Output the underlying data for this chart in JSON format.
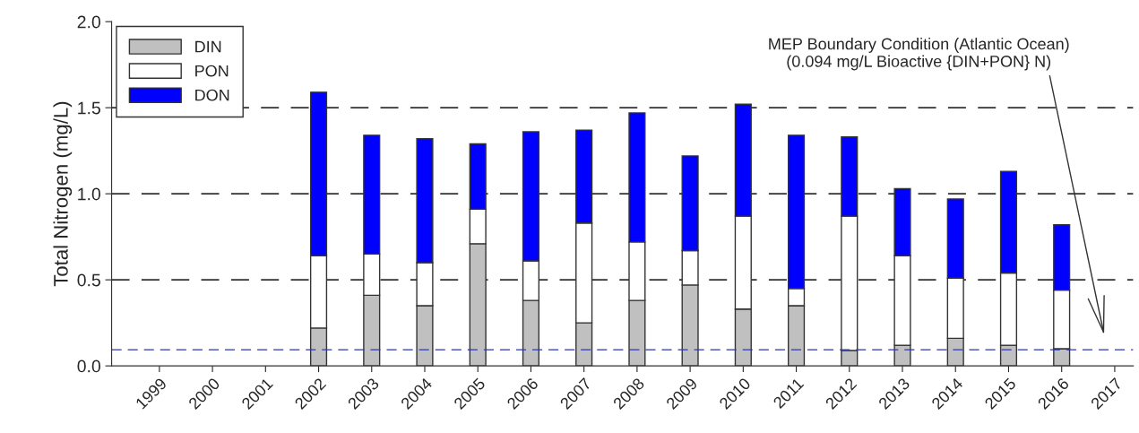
{
  "chart_data": {
    "type": "bar",
    "stacked": true,
    "ylabel": "Total Nitrogen (mg/L)",
    "categories": [
      "1999",
      "2000",
      "2001",
      "2002",
      "2003",
      "2004",
      "2005",
      "2006",
      "2007",
      "2008",
      "2009",
      "2010",
      "2011",
      "2012",
      "2013",
      "2014",
      "2015",
      "2016",
      "2017"
    ],
    "series": [
      {
        "name": "DIN",
        "color": "#c0c0c0",
        "values": [
          null,
          null,
          null,
          0.22,
          0.41,
          0.35,
          0.71,
          0.38,
          0.25,
          0.38,
          0.47,
          0.33,
          0.35,
          0.09,
          0.12,
          0.16,
          0.12,
          0.1,
          null
        ]
      },
      {
        "name": "PON",
        "color": "#ffffff",
        "values": [
          null,
          null,
          null,
          0.42,
          0.24,
          0.25,
          0.2,
          0.23,
          0.58,
          0.34,
          0.2,
          0.54,
          0.1,
          0.78,
          0.52,
          0.35,
          0.42,
          0.34,
          null
        ]
      },
      {
        "name": "DON",
        "color": "#0000ff",
        "values": [
          null,
          null,
          null,
          0.95,
          0.69,
          0.72,
          0.38,
          0.75,
          0.54,
          0.75,
          0.55,
          0.65,
          0.89,
          0.46,
          0.39,
          0.46,
          0.59,
          0.38,
          null
        ]
      }
    ],
    "ylim": [
      0,
      2.0
    ],
    "yticks": [
      {
        "value": 0,
        "label": "0.0"
      },
      {
        "value": 0.5,
        "label": "0.5"
      },
      {
        "value": 1.0,
        "label": "1.0"
      },
      {
        "value": 1.5,
        "label": "1.5"
      },
      {
        "value": 2.0,
        "label": "2.0"
      }
    ],
    "grid": "y",
    "legend": "top left",
    "ref_lines": [
      {
        "axis": "y",
        "value": 0.094,
        "color": "#2838b0",
        "line_style": "dashed"
      }
    ],
    "annotations": [
      "MEP Boundary Condition (Atlantic Ocean)\n(0.094 mg/L Bioactive {DIN+PON} N)"
    ]
  }
}
